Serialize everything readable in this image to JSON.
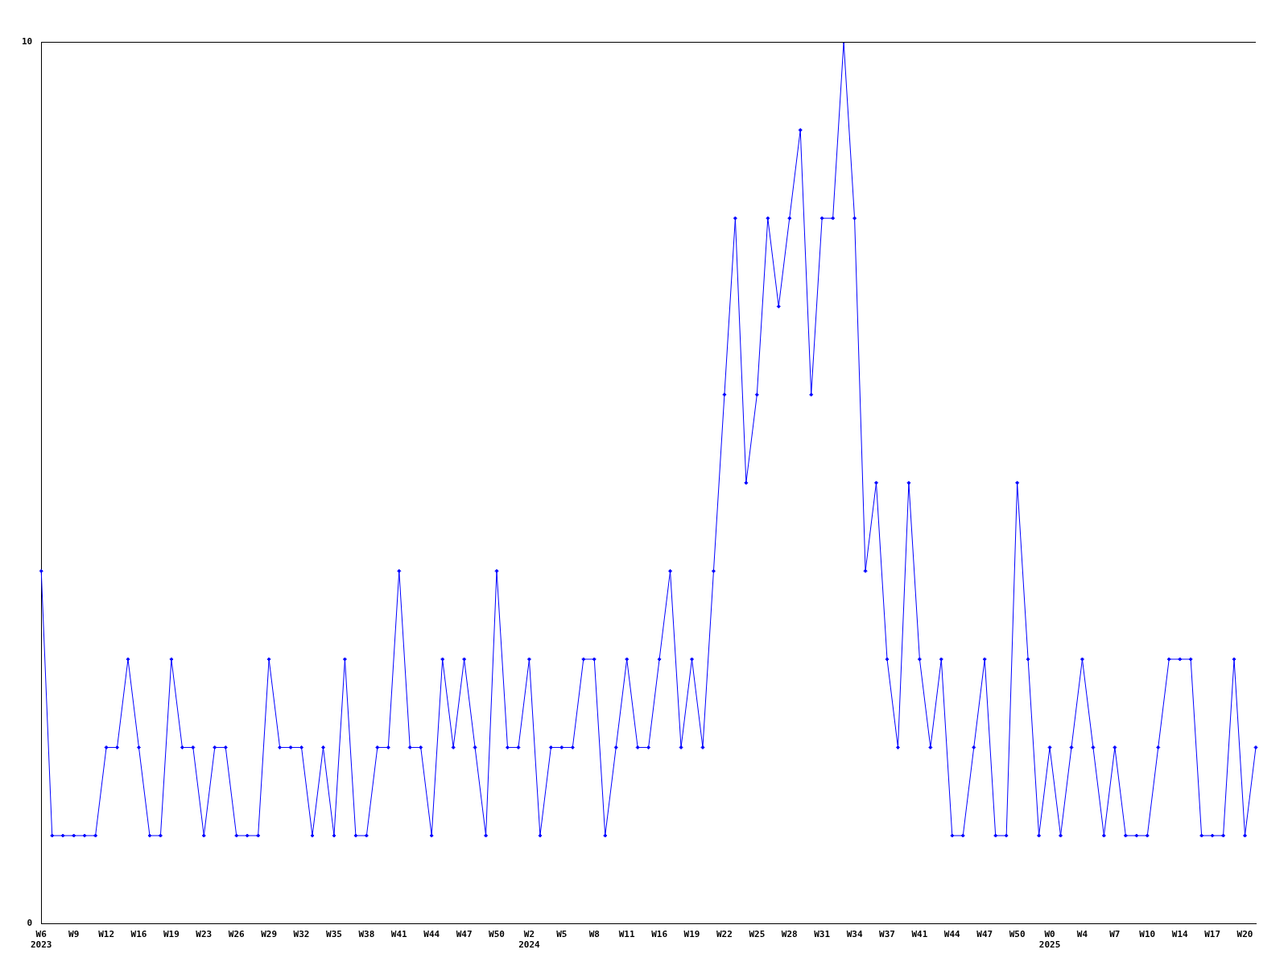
{
  "chart_data": {
    "type": "line",
    "categories": [
      "W6\n2023",
      null,
      null,
      "W9",
      null,
      null,
      "W12",
      null,
      null,
      "W16",
      null,
      null,
      "W19",
      null,
      null,
      "W23",
      null,
      null,
      "W26",
      null,
      null,
      "W29",
      null,
      null,
      "W32",
      null,
      null,
      "W35",
      null,
      null,
      "W38",
      null,
      null,
      "W41",
      null,
      null,
      "W44",
      null,
      null,
      "W47",
      null,
      null,
      "W50",
      null,
      null,
      "W2\n2024",
      null,
      null,
      "W5",
      null,
      null,
      "W8",
      null,
      null,
      "W11",
      null,
      null,
      "W16",
      null,
      null,
      "W19",
      null,
      null,
      "W22",
      null,
      null,
      "W25",
      null,
      null,
      "W28",
      null,
      null,
      "W31",
      null,
      null,
      "W34",
      null,
      null,
      "W37",
      null,
      null,
      "W41",
      null,
      null,
      "W44",
      null,
      null,
      "W47",
      null,
      null,
      "W50",
      null,
      null,
      "W0\n2025",
      null,
      null,
      "W4",
      null,
      null,
      "W7",
      null,
      null,
      "W10",
      null,
      null,
      "W14",
      null,
      null,
      "W17",
      null,
      null,
      "W20",
      null
    ],
    "series": [
      {
        "color": "#0000ff",
        "values": [
          4,
          1,
          1,
          1,
          1,
          1,
          2,
          2,
          3,
          2,
          1,
          1,
          3,
          2,
          2,
          1,
          2,
          2,
          1,
          1,
          1,
          3,
          2,
          2,
          2,
          1,
          2,
          1,
          3,
          1,
          1,
          2,
          2,
          4,
          2,
          2,
          1,
          3,
          2,
          3,
          2,
          1,
          4,
          2,
          2,
          3,
          1,
          2,
          2,
          2,
          3,
          3,
          1,
          2,
          3,
          2,
          2,
          3,
          4,
          2,
          3,
          2,
          4,
          6,
          8,
          5,
          6,
          8,
          7,
          8,
          9,
          6,
          8,
          8,
          10,
          8,
          4,
          5,
          3,
          2,
          5,
          3,
          2,
          3,
          1,
          1,
          2,
          3,
          1,
          1,
          5,
          3,
          1,
          2,
          1,
          2,
          3,
          2,
          1,
          2,
          1,
          1,
          1,
          2,
          3,
          3,
          3,
          1,
          1,
          1,
          3,
          1,
          2
        ]
      }
    ],
    "ylim": [
      0,
      10
    ],
    "yticks": [
      0,
      10
    ],
    "grid": false,
    "legend": false,
    "marker": "diamond",
    "line_style": "solid"
  }
}
